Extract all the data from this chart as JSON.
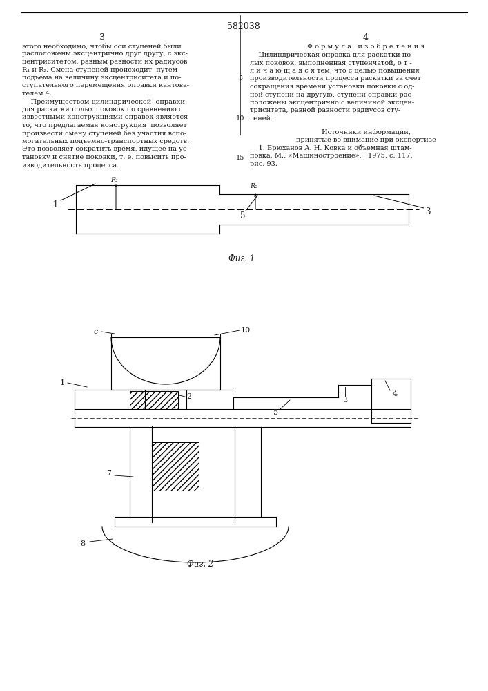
{
  "page_width": 7.07,
  "page_height": 10.0,
  "bg_color": "#ffffff",
  "patent_number": "582038",
  "col_left_header": "3",
  "col_right_header": "4",
  "col_left_text": [
    "этого необходимо, чтобы оси ступеней были",
    "расположены эксцентрично друг другу, с экс-",
    "центриситетом, равным разности их радиусов",
    "R₁ и R₂. Смена ступеней происходит  путем",
    "подъема на величину эксцентриситета и по-",
    "ступательного перемещения оправки кантова-",
    "телем 4.",
    "    Преимуществом цилиндрической  оправки",
    "для раскатки полых поковок по сравнению с",
    "известными конструкциями оправок является",
    "то, что предлагаемая конструкция  позволяет",
    "произвести смену ступеней без участия вспо-",
    "могательных подъемно-транспортных средств.",
    "Это позволяет сократить время, идущее на ус-",
    "тановку и снятие поковки, т. е. повысить про-",
    "изводительность процесса."
  ],
  "col_right_header_text": "Ф о р м у л а   и з о б р е т е н и я",
  "col_right_text": [
    "    Цилиндрическая оправка для раскатки по-",
    "лых поковок, выполненная ступенчатой, о т -",
    "л и ч а ю щ а я с я тем, что с целью повышения",
    "производительности процесса раскатки за счет",
    "сокращения времени установки поковки с од-",
    "ной ступени на другую, ступени оправки рас-",
    "положены эксцентрично с величиной эксцен-",
    "триситета, равной разности радиусов сту-",
    "пеней."
  ],
  "sources_header": "Источники информации,",
  "sources_subheader": "принятые во внимание при экспертизе",
  "sources_text": [
    "    1. Брюханов А. Н. Ковка и объемная штам-",
    "повка. М., «Машиностроение»,   1975, с. 117,",
    "рис. 93."
  ],
  "fig1_caption": "Фиг. 1",
  "fig2_caption": "Фиг. 2"
}
